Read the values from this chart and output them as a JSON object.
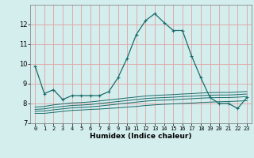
{
  "xlabel": "Humidex (Indice chaleur)",
  "background_color": "#d4eeee",
  "grid_color": "#e0aaaa",
  "line_color": "#1a6b6b",
  "x": [
    0,
    1,
    2,
    3,
    4,
    5,
    6,
    7,
    8,
    9,
    10,
    11,
    12,
    13,
    14,
    15,
    16,
    17,
    18,
    19,
    20,
    21,
    22,
    23
  ],
  "main_line": [
    9.9,
    8.5,
    8.7,
    8.2,
    8.4,
    8.4,
    8.4,
    8.4,
    8.6,
    9.3,
    10.3,
    11.5,
    12.2,
    12.55,
    12.1,
    11.7,
    11.7,
    10.4,
    9.3,
    8.3,
    8.0,
    8.0,
    7.75,
    8.3
  ],
  "flat_lines": [
    [
      7.5,
      7.5,
      7.55,
      7.6,
      7.65,
      7.67,
      7.7,
      7.72,
      7.75,
      7.78,
      7.82,
      7.85,
      7.9,
      7.93,
      7.96,
      7.98,
      8.0,
      8.02,
      8.05,
      8.07,
      8.09,
      8.1,
      8.12,
      8.14
    ],
    [
      7.6,
      7.62,
      7.68,
      7.73,
      7.78,
      7.8,
      7.83,
      7.87,
      7.92,
      7.97,
      8.02,
      8.07,
      8.12,
      8.15,
      8.17,
      8.19,
      8.22,
      8.24,
      8.27,
      8.29,
      8.3,
      8.3,
      8.32,
      8.35
    ],
    [
      7.7,
      7.73,
      7.8,
      7.85,
      7.9,
      7.92,
      7.95,
      8.0,
      8.05,
      8.1,
      8.15,
      8.2,
      8.25,
      8.28,
      8.3,
      8.32,
      8.35,
      8.37,
      8.4,
      8.42,
      8.43,
      8.43,
      8.45,
      8.48
    ],
    [
      7.82,
      7.85,
      7.93,
      7.98,
      8.03,
      8.05,
      8.08,
      8.13,
      8.18,
      8.23,
      8.28,
      8.33,
      8.38,
      8.41,
      8.43,
      8.45,
      8.48,
      8.5,
      8.53,
      8.55,
      8.56,
      8.56,
      8.58,
      8.61
    ]
  ],
  "ylim": [
    7.0,
    13.0
  ],
  "xlim": [
    -0.5,
    23.5
  ],
  "yticks": [
    7,
    8,
    9,
    10,
    11,
    12
  ],
  "xticks": [
    0,
    1,
    2,
    3,
    4,
    5,
    6,
    7,
    8,
    9,
    10,
    11,
    12,
    13,
    14,
    15,
    16,
    17,
    18,
    19,
    20,
    21,
    22,
    23
  ]
}
